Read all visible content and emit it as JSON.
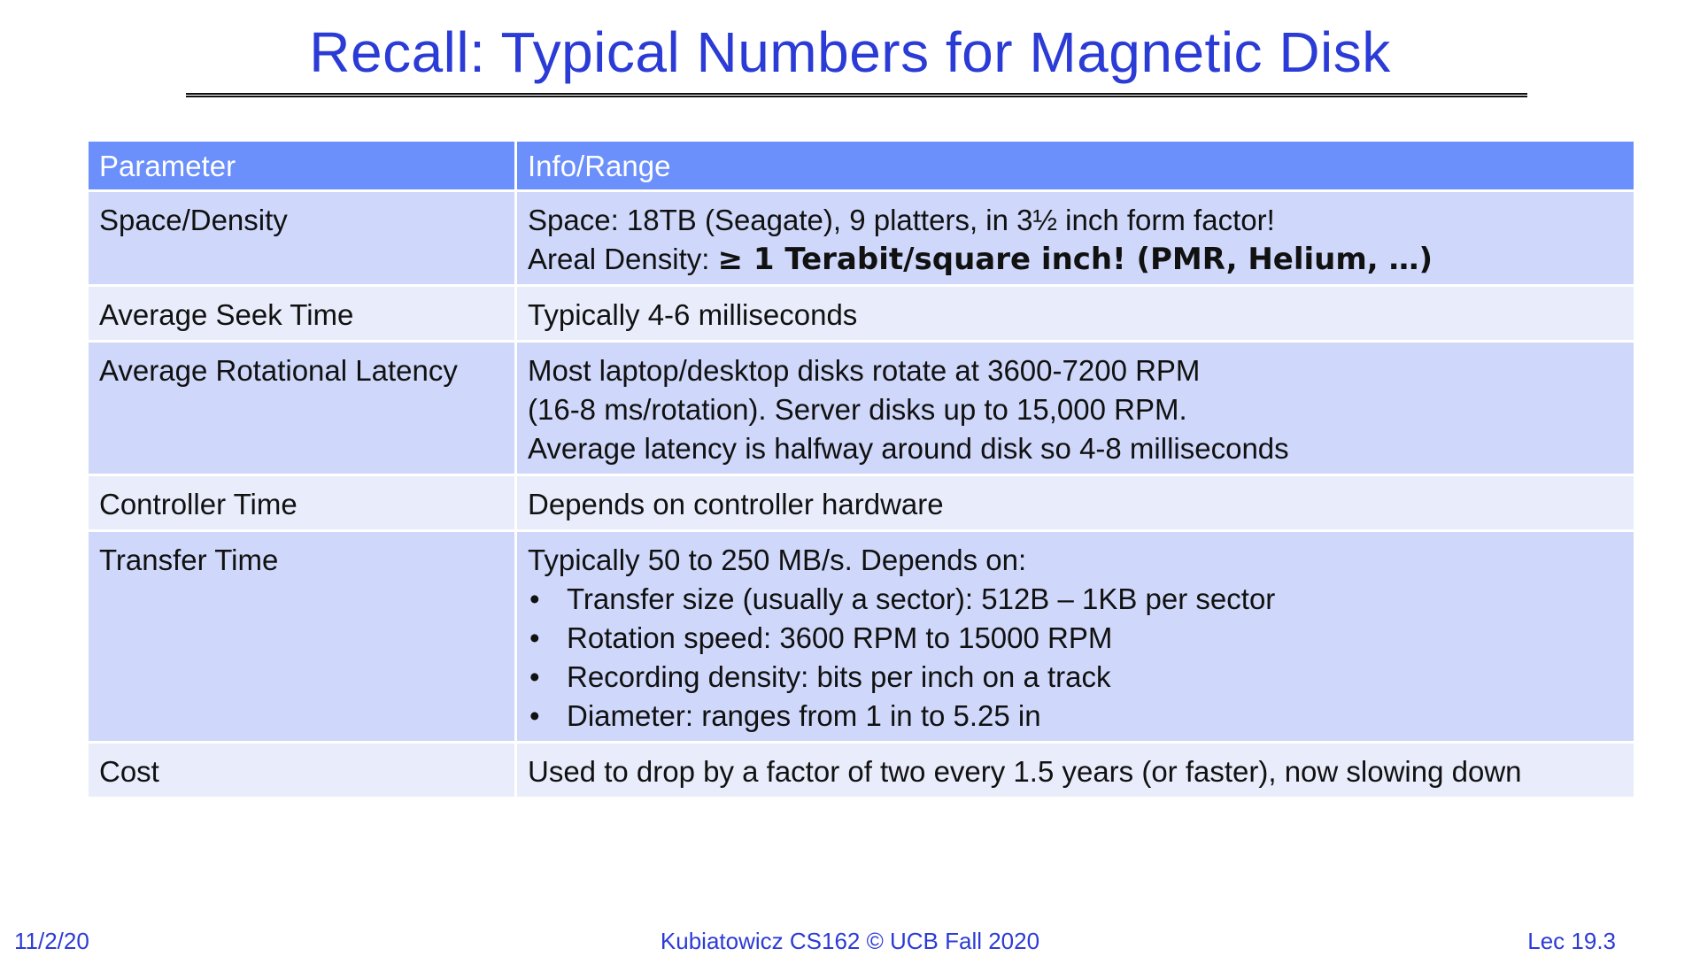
{
  "title": "Recall: Typical Numbers for Magnetic Disk",
  "table": {
    "headers": [
      "Parameter",
      "Info/Range"
    ],
    "rows": [
      {
        "param": "Space/Density",
        "lines": [
          "Space: 18TB (Seagate), 9 platters, in 3½ inch form factor!"
        ],
        "areal_prefix": "Areal Density: ",
        "areal_bold": "≥ 1 Terabit/square inch! (PMR, Helium, …)"
      },
      {
        "param": "Average Seek Time",
        "lines": [
          "Typically 4-6 milliseconds"
        ]
      },
      {
        "param": "Average Rotational Latency",
        "lines": [
          "Most laptop/desktop disks rotate at 3600-7200 RPM",
          "(16-8 ms/rotation). Server disks up to 15,000 RPM.",
          "Average latency is halfway around disk so 4-8 milliseconds"
        ]
      },
      {
        "param": "Controller Time",
        "lines": [
          "Depends on controller hardware"
        ]
      },
      {
        "param": "Transfer Time",
        "lines": [
          "Typically 50 to 250 MB/s. Depends on:"
        ],
        "bullets": [
          "Transfer size (usually a sector): 512B – 1KB per sector",
          "Rotation speed: 3600 RPM to 15000 RPM",
          "Recording density: bits per inch on a track",
          "Diameter: ranges from  1 in to 5.25 in"
        ]
      },
      {
        "param": "Cost",
        "lines": [
          "Used to drop by a factor of two every 1.5 years (or faster), now slowing down"
        ]
      }
    ]
  },
  "footer": {
    "date": "11/2/20",
    "course": "Kubiatowicz CS162 © UCB Fall 2020",
    "lecture": "Lec 19.3"
  },
  "colors": {
    "title": "#2b3bd6",
    "header_bg": "#6b8ffb",
    "row_dark": "#cfd8fa",
    "row_light": "#e9edfb"
  }
}
